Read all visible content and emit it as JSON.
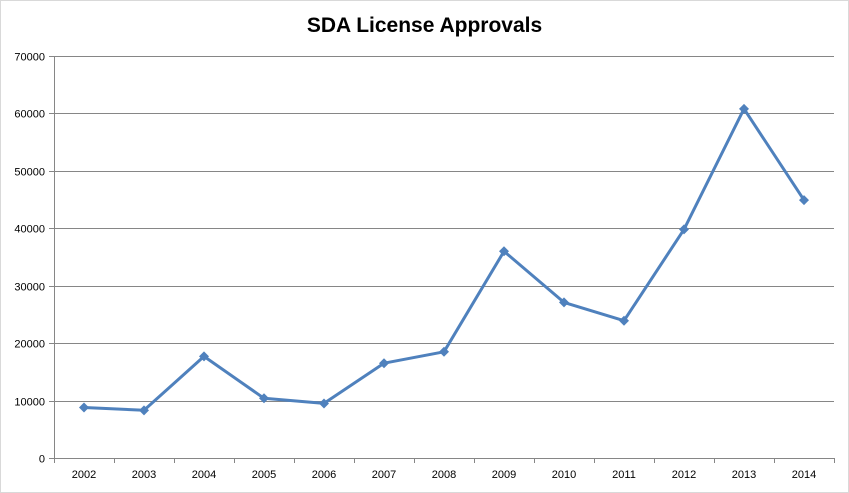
{
  "chart_data": {
    "type": "line",
    "title": "SDA License Approvals",
    "xlabel": "",
    "ylabel": "",
    "categories": [
      "2002",
      "2003",
      "2004",
      "2005",
      "2006",
      "2007",
      "2008",
      "2009",
      "2010",
      "2011",
      "2012",
      "2013",
      "2014"
    ],
    "series": [
      {
        "values": [
          8800,
          8300,
          17700,
          10400,
          9500,
          16500,
          18500,
          36000,
          27100,
          23900,
          39800,
          60800,
          44900
        ],
        "color": "#4f81bd",
        "marker": "diamond"
      }
    ],
    "ylim": [
      0,
      70000
    ],
    "yticks": [
      0,
      10000,
      20000,
      30000,
      40000,
      50000,
      60000,
      70000
    ],
    "grid": "horizontal",
    "legend": "none",
    "gridline_color": "#868686",
    "axis_color": "#868686"
  }
}
